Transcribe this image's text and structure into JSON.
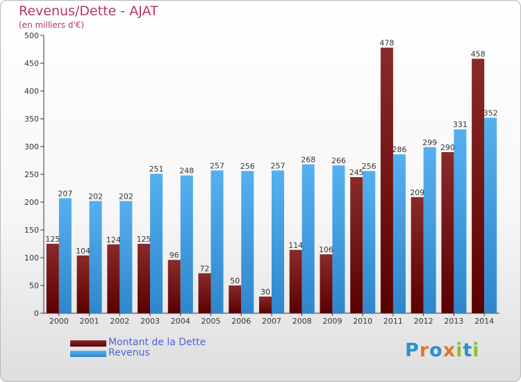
{
  "title": "Revenus/Dette - AJAT",
  "subtitle": "(en milliers d'€)",
  "logo": {
    "letters": [
      "P",
      "r",
      "o",
      "x",
      "i",
      "t",
      "i"
    ],
    "colors": [
      "#2b8fd0",
      "#e0782a",
      "#2b8fd0",
      "#e0782a",
      "#8abf2f",
      "#2b8fd0",
      "#8abf2f"
    ]
  },
  "colors": {
    "title": "#b5326a",
    "dette": "#6b0b0b",
    "revenus": "#3d9ee4",
    "legend_text": "#4b64d6"
  },
  "chart_data": {
    "type": "bar",
    "categories": [
      "2000",
      "2001",
      "2002",
      "2003",
      "2004",
      "2005",
      "2006",
      "2007",
      "2008",
      "2009",
      "2010",
      "2011",
      "2012",
      "2013",
      "2014"
    ],
    "series": [
      {
        "name": "Montant de la Dette",
        "color": "#6b0b0b",
        "values": [
          125,
          104,
          124,
          125,
          96,
          72,
          50,
          30,
          114,
          106,
          245,
          478,
          209,
          290,
          458
        ]
      },
      {
        "name": "Revenus",
        "color": "#3d9ee4",
        "values": [
          207,
          202,
          202,
          251,
          248,
          257,
          256,
          257,
          268,
          266,
          256,
          286,
          299,
          331,
          352
        ]
      }
    ],
    "yticks": [
      0,
      50,
      100,
      150,
      200,
      250,
      300,
      350,
      400,
      450,
      500
    ],
    "ylim": [
      0,
      500
    ],
    "grid": false,
    "legend_position": "bottom-left"
  }
}
